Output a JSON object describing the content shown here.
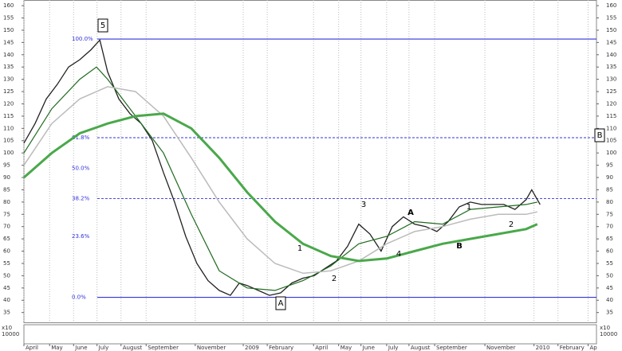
{
  "chart_data": {
    "type": "line",
    "xlim": [
      0,
      102.6
    ],
    "ylim": [
      31,
      162.3
    ],
    "yticks": [
      35,
      40,
      45,
      50,
      55,
      60,
      65,
      70,
      75,
      80,
      85,
      90,
      95,
      100,
      105,
      110,
      115,
      120,
      125,
      130,
      135,
      140,
      145,
      150,
      155,
      160
    ],
    "xticks": [
      {
        "value": 0,
        "label": "April"
      },
      {
        "value": 4.6,
        "label": "May"
      },
      {
        "value": 8.9,
        "label": "June"
      },
      {
        "value": 13.1,
        "label": "July"
      },
      {
        "value": 17.4,
        "label": "August"
      },
      {
        "value": 21.9,
        "label": "September"
      },
      {
        "value": 30.7,
        "label": "November"
      },
      {
        "value": 39.3,
        "label": "2009"
      },
      {
        "value": 43.6,
        "label": "February"
      },
      {
        "value": 51.9,
        "label": "April"
      },
      {
        "value": 56.4,
        "label": "May"
      },
      {
        "value": 60.4,
        "label": "June"
      },
      {
        "value": 65,
        "label": "July"
      },
      {
        "value": 69,
        "label": "August"
      },
      {
        "value": 73.6,
        "label": "September"
      },
      {
        "value": 82.6,
        "label": "November"
      },
      {
        "value": 91.4,
        "label": "2010"
      },
      {
        "value": 95.7,
        "label": "February"
      },
      {
        "value": 101.1,
        "label": "Ap"
      }
    ],
    "grid": true,
    "series": [
      {
        "color": "#222222",
        "width": 1.3,
        "x": [
          0,
          2,
          4,
          6,
          8,
          10,
          12,
          13.6,
          15,
          17,
          19,
          21,
          23,
          25,
          27,
          29,
          31,
          33,
          35,
          37,
          38.6,
          40,
          42,
          44,
          46,
          48,
          50,
          52,
          54,
          56,
          58,
          60,
          62,
          64,
          66,
          68,
          70,
          72,
          74,
          76,
          78,
          80,
          82,
          84,
          86,
          88,
          90,
          91,
          92.5
        ],
        "values": [
          104,
          112,
          122,
          128,
          135,
          138,
          142,
          146,
          133,
          122,
          116,
          112,
          105,
          92,
          80,
          66,
          55,
          48,
          44,
          42,
          47,
          46,
          44,
          42,
          43,
          47,
          49,
          50,
          53,
          56,
          62,
          71,
          67,
          60,
          70,
          74,
          71,
          70,
          68,
          72,
          78,
          80,
          79,
          79,
          79,
          77,
          81,
          85,
          79
        ]
      },
      {
        "color": "#1f6b1f",
        "width": 1.2,
        "x": [
          0,
          5,
          10,
          13,
          15,
          20,
          25,
          30,
          35,
          40,
          45,
          50,
          55,
          60,
          65,
          70,
          75,
          80,
          85,
          90,
          92
        ],
        "values": [
          100,
          118,
          130,
          135,
          130,
          115,
          100,
          75,
          52,
          45,
          44,
          48,
          54,
          63,
          66,
          72,
          71,
          77,
          78,
          79,
          80
        ]
      },
      {
        "color": "#bbbbbb",
        "width": 1.5,
        "x": [
          0,
          5,
          10,
          15,
          20,
          25,
          30,
          35,
          40,
          45,
          50,
          55,
          60,
          65,
          70,
          75,
          80,
          85,
          90,
          92
        ],
        "values": [
          95,
          112,
          122,
          127,
          125,
          115,
          98,
          80,
          65,
          55,
          51,
          52,
          56,
          63,
          68,
          70,
          73,
          75,
          75,
          76
        ]
      },
      {
        "color": "#4aa84a",
        "width": 3,
        "x": [
          0,
          5,
          10,
          15,
          20,
          25,
          30,
          35,
          40,
          45,
          50,
          55,
          60,
          65,
          70,
          75,
          80,
          85,
          90,
          92
        ],
        "values": [
          90,
          100,
          108,
          112,
          115,
          116,
          110,
          98,
          84,
          72,
          63,
          58,
          56,
          57,
          60,
          63,
          65,
          67,
          69,
          71
        ]
      }
    ],
    "fibonacci": {
      "high": 146.4,
      "low": 41.2,
      "color": "#3333dd",
      "levels": [
        {
          "value": 100,
          "label": "100.0%",
          "style": "solid"
        },
        {
          "value": 61.8,
          "label": "61.8%",
          "style": "dashed"
        },
        {
          "value": 50,
          "label": "50.0%",
          "style": "none"
        },
        {
          "value": 38.2,
          "label": "38.2%",
          "style": "dashed"
        },
        {
          "value": 23.6,
          "label": "23.6%",
          "style": "none"
        },
        {
          "value": 0,
          "label": "0.0%",
          "style": "solid"
        }
      ]
    },
    "annotations": [
      "5",
      "A",
      "B",
      "1",
      "2",
      "3",
      "4",
      "A",
      "B",
      "1",
      "2"
    ],
    "volume_axis_label": "10000",
    "volume_scale_label": "x10"
  }
}
